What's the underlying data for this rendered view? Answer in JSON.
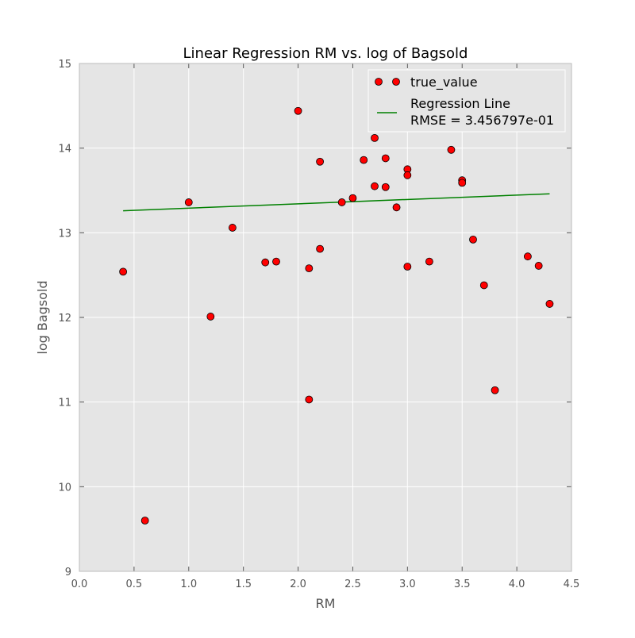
{
  "chart_data": {
    "type": "scatter",
    "title": "Linear Regression RM vs. log of Bagsold",
    "xlabel": "RM",
    "ylabel": "log Bagsold",
    "xlim": [
      0.0,
      4.5
    ],
    "ylim": [
      9,
      15
    ],
    "x_ticks": [
      "0.0",
      "0.5",
      "1.0",
      "1.5",
      "2.0",
      "2.5",
      "3.0",
      "3.5",
      "4.0",
      "4.5"
    ],
    "y_ticks": [
      "9",
      "10",
      "11",
      "12",
      "13",
      "14",
      "15"
    ],
    "grid": true,
    "legend_position": "top-right",
    "background_color": "#e5e5e5",
    "series": [
      {
        "name": "true_value",
        "kind": "scatter",
        "color": "#ff0000",
        "points": [
          {
            "x": 0.4,
            "y": 12.54
          },
          {
            "x": 0.6,
            "y": 9.6
          },
          {
            "x": 1.0,
            "y": 13.36
          },
          {
            "x": 1.2,
            "y": 12.01
          },
          {
            "x": 1.4,
            "y": 13.06
          },
          {
            "x": 1.7,
            "y": 12.65
          },
          {
            "x": 1.8,
            "y": 12.66
          },
          {
            "x": 2.0,
            "y": 14.44
          },
          {
            "x": 2.1,
            "y": 12.58
          },
          {
            "x": 2.1,
            "y": 11.03
          },
          {
            "x": 2.2,
            "y": 13.84
          },
          {
            "x": 2.2,
            "y": 12.81
          },
          {
            "x": 2.4,
            "y": 13.36
          },
          {
            "x": 2.5,
            "y": 13.41
          },
          {
            "x": 2.6,
            "y": 13.86
          },
          {
            "x": 2.7,
            "y": 14.12
          },
          {
            "x": 2.7,
            "y": 13.55
          },
          {
            "x": 2.8,
            "y": 13.88
          },
          {
            "x": 2.8,
            "y": 13.54
          },
          {
            "x": 2.9,
            "y": 13.3
          },
          {
            "x": 3.0,
            "y": 13.75
          },
          {
            "x": 3.0,
            "y": 13.68
          },
          {
            "x": 3.0,
            "y": 12.6
          },
          {
            "x": 3.2,
            "y": 12.66
          },
          {
            "x": 3.4,
            "y": 13.98
          },
          {
            "x": 3.5,
            "y": 13.62
          },
          {
            "x": 3.5,
            "y": 13.59
          },
          {
            "x": 3.6,
            "y": 12.92
          },
          {
            "x": 3.7,
            "y": 12.38
          },
          {
            "x": 3.8,
            "y": 11.14
          },
          {
            "x": 4.1,
            "y": 12.72
          },
          {
            "x": 4.2,
            "y": 12.61
          },
          {
            "x": 4.3,
            "y": 12.16
          }
        ]
      },
      {
        "name": "Regression Line",
        "kind": "line",
        "color": "#008000",
        "x": [
          0.4,
          4.3
        ],
        "y": [
          13.26,
          13.46
        ]
      }
    ],
    "legend": {
      "entries": [
        {
          "label": "true_value"
        },
        {
          "label": "Regression Line",
          "sublabel": "RMSE = 3.456797e-01"
        }
      ]
    }
  }
}
